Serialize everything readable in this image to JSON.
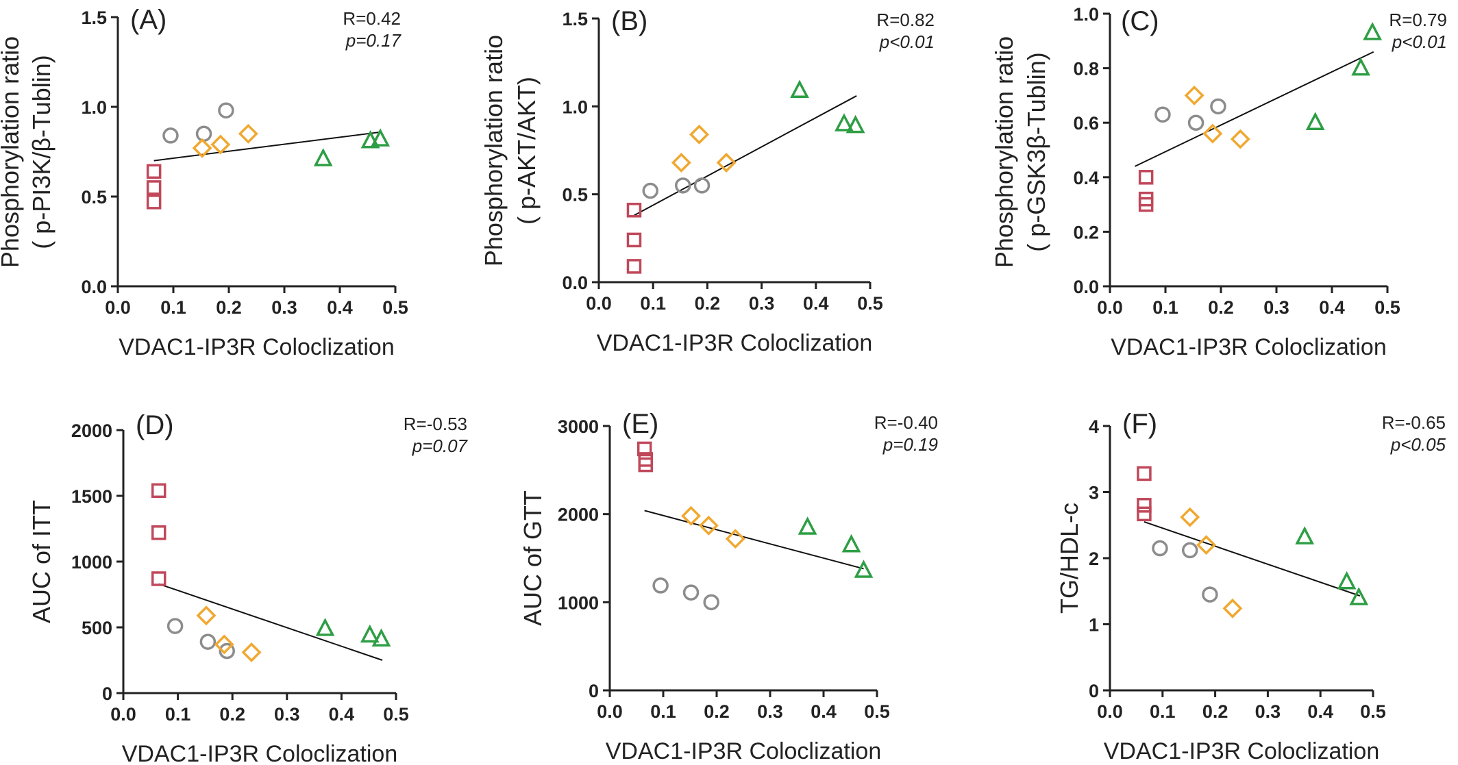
{
  "colors": {
    "square": "#c0485a",
    "circle": "#8c8c8c",
    "diamond": "#f0a830",
    "triangle": "#2e9e44"
  },
  "groups": [
    {
      "marker": "square-icon",
      "color": "#c0485a"
    },
    {
      "marker": "circle-icon",
      "color": "#8c8c8c"
    },
    {
      "marker": "diamond-icon",
      "color": "#f0a830"
    },
    {
      "marker": "triangle-icon",
      "color": "#2e9e44"
    }
  ],
  "chart_data": [
    {
      "type": "scatter",
      "panel": "(A)",
      "xlabel": "VDAC1-IP3R Coloclization",
      "ylabel": [
        "Phosphorylation ratio",
        "( p-PI3K/β-Tublin)"
      ],
      "xlim": [
        0,
        0.5
      ],
      "ylim": [
        0,
        1.5
      ],
      "xticks": [
        "0.0",
        "0.1",
        "0.2",
        "0.3",
        "0.4",
        "0.5"
      ],
      "yticks": [
        "0.0",
        "0.5",
        "1.0",
        "1.5"
      ],
      "R": "R=0.42",
      "p": "p=0.17",
      "fit": {
        "x": [
          0.065,
          0.475
        ],
        "y": [
          0.7,
          0.86
        ]
      },
      "series": [
        {
          "marker": "square",
          "x": [
            0.065,
            0.065,
            0.065
          ],
          "y": [
            0.64,
            0.55,
            0.47
          ]
        },
        {
          "marker": "circle",
          "x": [
            0.095,
            0.155,
            0.195
          ],
          "y": [
            0.84,
            0.85,
            0.98
          ]
        },
        {
          "marker": "diamond",
          "x": [
            0.152,
            0.185,
            0.235
          ],
          "y": [
            0.77,
            0.79,
            0.85
          ]
        },
        {
          "marker": "triangle",
          "x": [
            0.37,
            0.455,
            0.473
          ],
          "y": [
            0.71,
            0.81,
            0.82
          ]
        }
      ]
    },
    {
      "type": "scatter",
      "panel": "(B)",
      "xlabel": "VDAC1-IP3R Coloclization",
      "ylabel": [
        "Phosphorylation ratio",
        "( p-AKT/AKT)"
      ],
      "xlim": [
        0,
        0.5
      ],
      "ylim": [
        0,
        1.5
      ],
      "xticks": [
        "0.0",
        "0.1",
        "0.2",
        "0.3",
        "0.4",
        "0.5"
      ],
      "yticks": [
        "0.0",
        "0.5",
        "1.0",
        "1.5"
      ],
      "R": "R=0.82",
      "p": "p<0.01",
      "fit": {
        "x": [
          0.065,
          0.475
        ],
        "y": [
          0.38,
          1.06
        ]
      },
      "series": [
        {
          "marker": "square",
          "x": [
            0.065,
            0.065,
            0.065
          ],
          "y": [
            0.41,
            0.24,
            0.09
          ]
        },
        {
          "marker": "circle",
          "x": [
            0.095,
            0.155,
            0.19
          ],
          "y": [
            0.52,
            0.55,
            0.55
          ]
        },
        {
          "marker": "diamond",
          "x": [
            0.152,
            0.185,
            0.235
          ],
          "y": [
            0.68,
            0.84,
            0.68
          ]
        },
        {
          "marker": "triangle",
          "x": [
            0.37,
            0.452,
            0.473
          ],
          "y": [
            1.09,
            0.9,
            0.89
          ]
        }
      ]
    },
    {
      "type": "scatter",
      "panel": "(C)",
      "xlabel": "VDAC1-IP3R Coloclization",
      "ylabel": [
        "Phosphorylation ratio",
        "( p-GSK3β-Tublin)"
      ],
      "xlim": [
        0,
        0.5
      ],
      "ylim": [
        0,
        1.0
      ],
      "xticks": [
        "0.0",
        "0.1",
        "0.2",
        "0.3",
        "0.4",
        "0.5"
      ],
      "yticks": [
        "0.0",
        "0.2",
        "0.4",
        "0.6",
        "0.8",
        "1.0"
      ],
      "R": "R=0.79",
      "p": "p<0.01",
      "fit": {
        "x": [
          0.045,
          0.475
        ],
        "y": [
          0.44,
          0.86
        ]
      },
      "series": [
        {
          "marker": "square",
          "x": [
            0.065,
            0.065,
            0.065
          ],
          "y": [
            0.4,
            0.32,
            0.3
          ]
        },
        {
          "marker": "circle",
          "x": [
            0.095,
            0.155,
            0.195
          ],
          "y": [
            0.63,
            0.6,
            0.66
          ]
        },
        {
          "marker": "diamond",
          "x": [
            0.152,
            0.185,
            0.235
          ],
          "y": [
            0.7,
            0.56,
            0.54
          ]
        },
        {
          "marker": "triangle",
          "x": [
            0.37,
            0.452,
            0.473
          ],
          "y": [
            0.6,
            0.8,
            0.93
          ]
        }
      ]
    },
    {
      "type": "scatter",
      "panel": "(D)",
      "xlabel": "VDAC1-IP3R Coloclization",
      "ylabel": [
        "AUC of ITT"
      ],
      "xlim": [
        0,
        0.5
      ],
      "ylim": [
        0,
        2000
      ],
      "xticks": [
        "0.0",
        "0.1",
        "0.2",
        "0.3",
        "0.4",
        "0.5"
      ],
      "yticks": [
        "0",
        "500",
        "1000",
        "1500",
        "2000"
      ],
      "R": "R=-0.53",
      "p": "p=0.07",
      "fit": {
        "x": [
          0.065,
          0.475
        ],
        "y": [
          830,
          250
        ]
      },
      "series": [
        {
          "marker": "square",
          "x": [
            0.065,
            0.065,
            0.065
          ],
          "y": [
            1540,
            1220,
            870
          ]
        },
        {
          "marker": "circle",
          "x": [
            0.095,
            0.155,
            0.19
          ],
          "y": [
            510,
            390,
            320
          ]
        },
        {
          "marker": "diamond",
          "x": [
            0.152,
            0.185,
            0.235
          ],
          "y": [
            590,
            370,
            310
          ]
        },
        {
          "marker": "triangle",
          "x": [
            0.37,
            0.452,
            0.473
          ],
          "y": [
            490,
            440,
            410
          ]
        }
      ]
    },
    {
      "type": "scatter",
      "panel": "(E)",
      "xlabel": "VDAC1-IP3R Coloclization",
      "ylabel": [
        "AUC of GTT"
      ],
      "xlim": [
        0,
        0.5
      ],
      "ylim": [
        0,
        3000
      ],
      "xticks": [
        "0.0",
        "0.1",
        "0.2",
        "0.3",
        "0.4",
        "0.5"
      ],
      "yticks": [
        "0",
        "1000",
        "2000",
        "3000"
      ],
      "R": "R=-0.40",
      "p": "p=0.19",
      "fit": {
        "x": [
          0.065,
          0.475
        ],
        "y": [
          2040,
          1380
        ]
      },
      "series": [
        {
          "marker": "square",
          "x": [
            0.065,
            0.067,
            0.067
          ],
          "y": [
            2740,
            2620,
            2560
          ]
        },
        {
          "marker": "circle",
          "x": [
            0.095,
            0.152,
            0.19
          ],
          "y": [
            1190,
            1110,
            1000
          ]
        },
        {
          "marker": "diamond",
          "x": [
            0.152,
            0.185,
            0.235
          ],
          "y": [
            1980,
            1870,
            1720
          ]
        },
        {
          "marker": "triangle",
          "x": [
            0.37,
            0.452,
            0.475
          ],
          "y": [
            1850,
            1650,
            1360
          ]
        }
      ]
    },
    {
      "type": "scatter",
      "panel": "(F)",
      "xlabel": "VDAC1-IP3R Coloclization",
      "ylabel": [
        "TG/HDL-c"
      ],
      "xlim": [
        0,
        0.5
      ],
      "ylim": [
        0,
        4
      ],
      "xticks": [
        "0.0",
        "0.1",
        "0.2",
        "0.3",
        "0.4",
        "0.5"
      ],
      "yticks": [
        "0",
        "1",
        "2",
        "3",
        "4"
      ],
      "R": "R=-0.65",
      "p": "p<0.05",
      "fit": {
        "x": [
          0.065,
          0.475
        ],
        "y": [
          2.55,
          1.43
        ]
      },
      "series": [
        {
          "marker": "square",
          "x": [
            0.065,
            0.065,
            0.065
          ],
          "y": [
            3.28,
            2.8,
            2.67
          ]
        },
        {
          "marker": "circle",
          "x": [
            0.095,
            0.152,
            0.19
          ],
          "y": [
            2.15,
            2.12,
            1.45
          ]
        },
        {
          "marker": "diamond",
          "x": [
            0.152,
            0.183,
            0.233
          ],
          "y": [
            2.62,
            2.2,
            1.24
          ]
        },
        {
          "marker": "triangle",
          "x": [
            0.37,
            0.45,
            0.473
          ],
          "y": [
            2.32,
            1.64,
            1.4
          ]
        }
      ]
    }
  ]
}
